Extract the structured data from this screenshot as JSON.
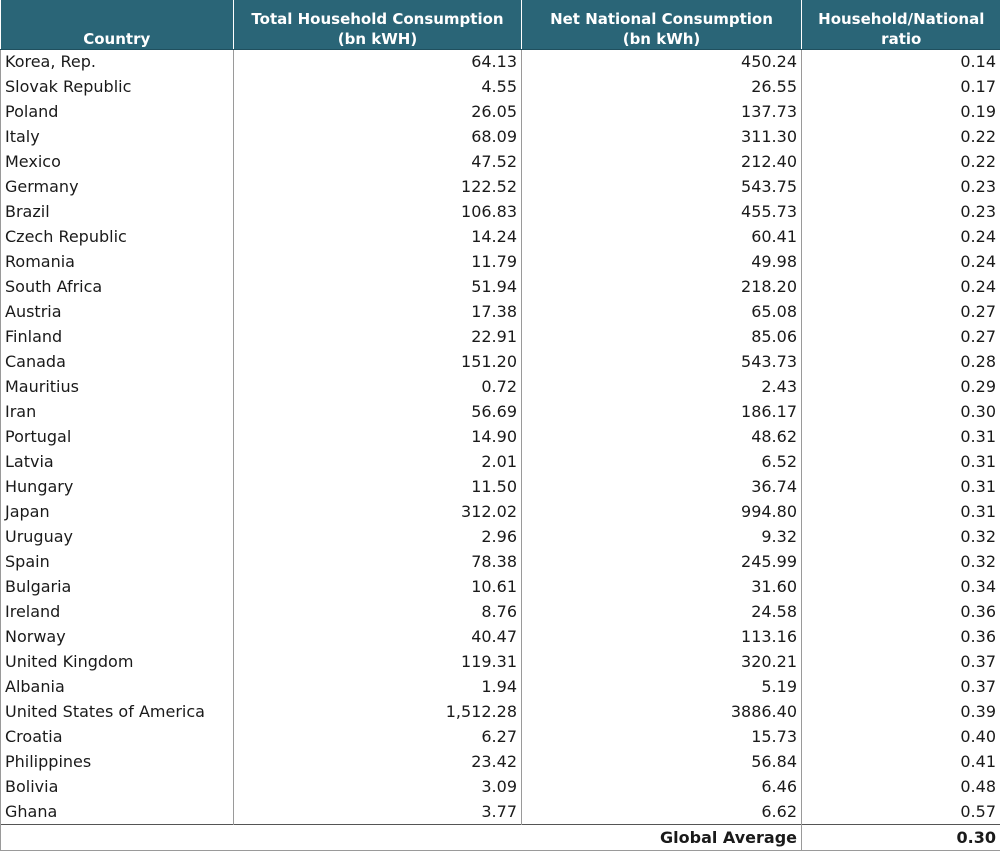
{
  "table": {
    "headers": {
      "country": "Country",
      "household_line1": "Total Household Consumption",
      "household_line2": "(bn kWH)",
      "national_line1": "Net National Consumption",
      "national_line2": "(bn kWh)",
      "ratio_line1": "Household/National",
      "ratio_line2": "ratio"
    },
    "rows": [
      {
        "country": "Korea, Rep.",
        "household": "64.13",
        "national": "450.24",
        "ratio": "0.14"
      },
      {
        "country": "Slovak Republic",
        "household": "4.55",
        "national": "26.55",
        "ratio": "0.17"
      },
      {
        "country": "Poland",
        "household": "26.05",
        "national": "137.73",
        "ratio": "0.19"
      },
      {
        "country": "Italy",
        "household": "68.09",
        "national": "311.30",
        "ratio": "0.22"
      },
      {
        "country": "Mexico",
        "household": "47.52",
        "national": "212.40",
        "ratio": "0.22"
      },
      {
        "country": "Germany",
        "household": "122.52",
        "national": "543.75",
        "ratio": "0.23"
      },
      {
        "country": "Brazil",
        "household": "106.83",
        "national": "455.73",
        "ratio": "0.23"
      },
      {
        "country": "Czech Republic",
        "household": "14.24",
        "national": "60.41",
        "ratio": "0.24"
      },
      {
        "country": "Romania",
        "household": "11.79",
        "national": "49.98",
        "ratio": "0.24"
      },
      {
        "country": "South Africa",
        "household": "51.94",
        "national": "218.20",
        "ratio": "0.24"
      },
      {
        "country": "Austria",
        "household": "17.38",
        "national": "65.08",
        "ratio": "0.27"
      },
      {
        "country": "Finland",
        "household": "22.91",
        "national": "85.06",
        "ratio": "0.27"
      },
      {
        "country": "Canada",
        "household": "151.20",
        "national": "543.73",
        "ratio": "0.28"
      },
      {
        "country": "Mauritius",
        "household": "0.72",
        "national": "2.43",
        "ratio": "0.29"
      },
      {
        "country": "Iran",
        "household": "56.69",
        "national": "186.17",
        "ratio": "0.30"
      },
      {
        "country": "Portugal",
        "household": "14.90",
        "national": "48.62",
        "ratio": "0.31"
      },
      {
        "country": "Latvia",
        "household": "2.01",
        "national": "6.52",
        "ratio": "0.31"
      },
      {
        "country": "Hungary",
        "household": "11.50",
        "national": "36.74",
        "ratio": "0.31"
      },
      {
        "country": "Japan",
        "household": "312.02",
        "national": "994.80",
        "ratio": "0.31"
      },
      {
        "country": "Uruguay",
        "household": "2.96",
        "national": "9.32",
        "ratio": "0.32"
      },
      {
        "country": "Spain",
        "household": "78.38",
        "national": "245.99",
        "ratio": "0.32"
      },
      {
        "country": "Bulgaria",
        "household": "10.61",
        "national": "31.60",
        "ratio": "0.34"
      },
      {
        "country": "Ireland",
        "household": "8.76",
        "national": "24.58",
        "ratio": "0.36"
      },
      {
        "country": "Norway",
        "household": "40.47",
        "national": "113.16",
        "ratio": "0.36"
      },
      {
        "country": "United Kingdom",
        "household": "119.31",
        "national": "320.21",
        "ratio": "0.37"
      },
      {
        "country": "Albania",
        "household": "1.94",
        "national": "5.19",
        "ratio": "0.37"
      },
      {
        "country": "United States of America",
        "household": "1,512.28",
        "national": "3886.40",
        "ratio": "0.39"
      },
      {
        "country": "Croatia",
        "household": "6.27",
        "national": "15.73",
        "ratio": "0.40"
      },
      {
        "country": "Philippines",
        "household": "23.42",
        "national": "56.84",
        "ratio": "0.41"
      },
      {
        "country": "Bolivia",
        "household": "3.09",
        "national": "6.46",
        "ratio": "0.48"
      },
      {
        "country": "Ghana",
        "household": "3.77",
        "national": "6.62",
        "ratio": "0.57"
      }
    ],
    "footer": {
      "label": "Global Average",
      "value": "0.30"
    }
  },
  "colors": {
    "header_bg": "#2a6577",
    "header_text": "#ffffff"
  }
}
